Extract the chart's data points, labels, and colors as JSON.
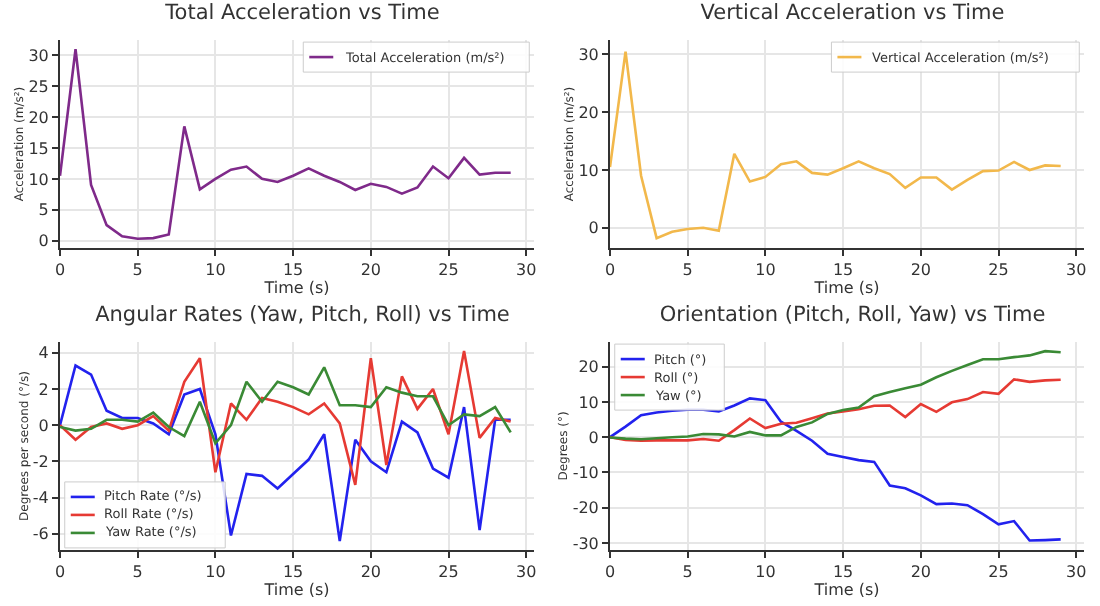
{
  "chart_data": [
    {
      "type": "line",
      "title": "Total Acceleration vs Time",
      "xlabel": "Time (s)",
      "ylabel": "Acceleration (m/s²)",
      "x": [
        0,
        1,
        2,
        3,
        4,
        5,
        6,
        7,
        8,
        9,
        10,
        11,
        12,
        13,
        14,
        15,
        16,
        17,
        18,
        19,
        20,
        21,
        22,
        23,
        24,
        25,
        26,
        27,
        28,
        29
      ],
      "series": [
        {
          "name": "Total Acceleration (m/s²)",
          "color": "#7f2a8a",
          "values": [
            10.5,
            31,
            9,
            2.5,
            0.7,
            0.3,
            0.4,
            1,
            18.5,
            8.3,
            10,
            11.5,
            12,
            10,
            9.5,
            10.5,
            11.7,
            10.5,
            9.5,
            8.2,
            9.2,
            8.7,
            7.6,
            8.6,
            12,
            10.1,
            13.4,
            10.7,
            11,
            11
          ]
        }
      ],
      "xlim": [
        0,
        30.5
      ],
      "xticks": [
        0,
        5,
        10,
        15,
        20,
        25,
        30
      ],
      "ylim": [
        -1.2,
        32.5
      ],
      "yticks": [
        0,
        5,
        10,
        15,
        20,
        25,
        30
      ],
      "grid": true,
      "legend": "top right"
    },
    {
      "type": "line",
      "title": "Vertical Acceleration vs Time",
      "xlabel": "Time (s)",
      "ylabel": "Acceleration (m/s²)",
      "x": [
        0,
        1,
        2,
        3,
        4,
        5,
        6,
        7,
        8,
        9,
        10,
        11,
        12,
        13,
        14,
        15,
        16,
        17,
        18,
        19,
        20,
        21,
        22,
        23,
        24,
        25,
        26,
        27,
        28,
        29
      ],
      "series": [
        {
          "name": "Vertical Acceleration (m/s²)",
          "color": "#f2b84b",
          "values": [
            10.5,
            30.5,
            9,
            -1.8,
            -0.7,
            -0.2,
            0,
            -0.5,
            12.8,
            8,
            8.8,
            11,
            11.5,
            9.5,
            9.2,
            10.3,
            11.5,
            10.3,
            9.3,
            6.9,
            8.7,
            8.7,
            6.6,
            8.3,
            9.8,
            9.9,
            11.4,
            10,
            10.8,
            10.7
          ]
        }
      ],
      "xlim": [
        0,
        30.5
      ],
      "xticks": [
        0,
        5,
        10,
        15,
        20,
        25,
        30
      ],
      "ylim": [
        -3.5,
        32.5
      ],
      "yticks": [
        0,
        10,
        20,
        30
      ],
      "grid": true,
      "legend": "top right"
    },
    {
      "type": "line",
      "title": "Angular Rates (Yaw, Pitch, Roll) vs Time",
      "xlabel": "Time (s)",
      "ylabel": "Degrees per second (°/s)",
      "x": [
        0,
        1,
        2,
        3,
        4,
        5,
        6,
        7,
        8,
        9,
        10,
        11,
        12,
        13,
        14,
        15,
        16,
        17,
        18,
        19,
        20,
        21,
        22,
        23,
        24,
        25,
        26,
        27,
        28,
        29
      ],
      "series": [
        {
          "name": "Pitch Rate (°/s)",
          "color": "#2222ee",
          "values": [
            0,
            3.3,
            2.8,
            0.8,
            0.4,
            0.4,
            0.1,
            -0.5,
            1.7,
            2,
            -0.5,
            -6.1,
            -2.7,
            -2.8,
            -3.5,
            -2.7,
            -1.9,
            -0.5,
            -6.4,
            -0.8,
            -2,
            -2.6,
            0.2,
            -0.4,
            -2.4,
            -2.9,
            1,
            -5.8,
            0.3,
            0.3
          ]
        },
        {
          "name": "Roll Rate (°/s)",
          "color": "#e63a33",
          "values": [
            0,
            -0.8,
            -0.1,
            0.1,
            -0.2,
            0,
            0.5,
            -0.3,
            2.4,
            3.7,
            -2.6,
            1.2,
            0.3,
            1.5,
            1.3,
            1,
            0.6,
            1.2,
            0.1,
            -3.3,
            3.7,
            -2.2,
            2.7,
            0.9,
            2,
            -0.5,
            4.1,
            -0.7,
            0.4,
            0.2
          ]
        },
        {
          "name": "Yaw Rate (°/s)",
          "color": "#3a8a35",
          "values": [
            -0.1,
            -0.3,
            -0.2,
            0.3,
            0.3,
            0.2,
            0.7,
            -0.1,
            -0.6,
            1.3,
            -1,
            0,
            2.4,
            1.3,
            2.4,
            2.1,
            1.7,
            3.2,
            1.1,
            1.1,
            1,
            2.1,
            1.8,
            1.6,
            1.6,
            0,
            0.6,
            0.5,
            1,
            -0.4
          ]
        }
      ],
      "xlim": [
        0,
        30.5
      ],
      "xticks": [
        0,
        5,
        10,
        15,
        20,
        25,
        30
      ],
      "ylim": [
        -6.9,
        4.6
      ],
      "yticks": [
        -6,
        -4,
        -2,
        0,
        2,
        4
      ],
      "grid": true,
      "legend": "bottom left"
    },
    {
      "type": "line",
      "title": "Orientation (Pitch, Roll, Yaw) vs Time",
      "xlabel": "Time (s)",
      "ylabel": "Degrees (°)",
      "x": [
        0,
        1,
        2,
        3,
        4,
        5,
        6,
        7,
        8,
        9,
        10,
        11,
        12,
        13,
        14,
        15,
        16,
        17,
        18,
        19,
        20,
        21,
        22,
        23,
        24,
        25,
        26,
        27,
        28,
        29
      ],
      "series": [
        {
          "name": "Pitch (°)",
          "color": "#2222ee",
          "values": [
            0,
            3,
            6.2,
            7,
            7.5,
            7.8,
            7.8,
            7.3,
            9,
            11,
            10.5,
            4.4,
            1.8,
            -1,
            -4.7,
            -5.6,
            -6.5,
            -7,
            -13.7,
            -14.5,
            -16.5,
            -19,
            -18.8,
            -19.3,
            -21.8,
            -24.7,
            -23.8,
            -29.3,
            -29.2,
            -29
          ]
        },
        {
          "name": "Roll (°)",
          "color": "#e63a33",
          "values": [
            0,
            -0.8,
            -1,
            -0.9,
            -0.9,
            -0.9,
            -0.5,
            -1,
            2,
            5.3,
            2.6,
            3.8,
            4.1,
            5.4,
            6.7,
            7.3,
            7.9,
            8.9,
            9,
            5.7,
            9.4,
            7.2,
            9.9,
            10.8,
            12.8,
            12.3,
            16.4,
            15.7,
            16.1,
            16.3
          ]
        },
        {
          "name": "Yaw (°)",
          "color": "#3a8a35",
          "values": [
            -0.1,
            -0.4,
            -0.6,
            -0.3,
            0,
            0.2,
            0.9,
            0.8,
            0.2,
            1.5,
            0.5,
            0.5,
            2.9,
            4.2,
            6.6,
            7.7,
            8.4,
            11.6,
            12.8,
            13.9,
            14.9,
            17,
            18.8,
            20.5,
            22.1,
            22.1,
            22.7,
            23.2,
            24.4,
            24.1
          ]
        }
      ],
      "xlim": [
        0,
        30.5
      ],
      "xticks": [
        0,
        5,
        10,
        15,
        20,
        25,
        30
      ],
      "ylim": [
        -32,
        27
      ],
      "yticks": [
        -30,
        -20,
        -10,
        0,
        10,
        20
      ],
      "grid": true,
      "legend": "top left"
    }
  ]
}
